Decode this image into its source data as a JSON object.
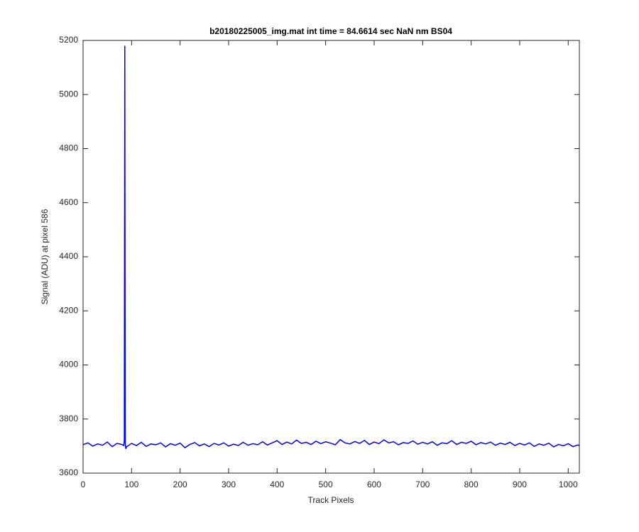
{
  "chart_data": {
    "type": "line",
    "title": "b20180225005_img.mat int time = 84.6614 sec  NaN nm BS04",
    "x_label": "Track Pixels",
    "y_label": "Signal (ADU) at pixel 586",
    "xlim": [
      0,
      1023
    ],
    "ylim": [
      3600,
      5200
    ],
    "xticks": [
      0,
      100,
      200,
      300,
      400,
      500,
      600,
      700,
      800,
      900,
      1000
    ],
    "yticks": [
      3600,
      3800,
      4000,
      4200,
      4400,
      4600,
      4800,
      5000,
      5200
    ],
    "series": [
      {
        "color": "#0000ff",
        "x": [
          0,
          10,
          20,
          30,
          40,
          50,
          60,
          70,
          80,
          84,
          85,
          86,
          87,
          88,
          90,
          100,
          110,
          120,
          130,
          140,
          150,
          160,
          170,
          180,
          190,
          200,
          210,
          220,
          230,
          240,
          250,
          260,
          270,
          280,
          290,
          300,
          310,
          320,
          330,
          340,
          350,
          360,
          370,
          380,
          390,
          400,
          410,
          420,
          430,
          440,
          450,
          460,
          470,
          480,
          490,
          500,
          510,
          520,
          530,
          540,
          550,
          560,
          570,
          580,
          590,
          600,
          610,
          620,
          630,
          640,
          650,
          660,
          670,
          680,
          690,
          700,
          710,
          720,
          730,
          740,
          750,
          760,
          770,
          780,
          790,
          800,
          810,
          820,
          830,
          840,
          850,
          860,
          870,
          880,
          890,
          900,
          910,
          920,
          930,
          940,
          950,
          960,
          970,
          980,
          990,
          1000,
          1010,
          1020,
          1023
        ],
        "values": [
          3705,
          3712,
          3700,
          3708,
          3703,
          3715,
          3698,
          3710,
          3706,
          3702,
          3720,
          5180,
          3712,
          3690,
          3698,
          3710,
          3702,
          3714,
          3699,
          3708,
          3705,
          3712,
          3697,
          3709,
          3703,
          3711,
          3694,
          3706,
          3713,
          3701,
          3708,
          3698,
          3710,
          3704,
          3712,
          3700,
          3707,
          3702,
          3714,
          3703,
          3709,
          3705,
          3716,
          3704,
          3712,
          3720,
          3706,
          3715,
          3708,
          3722,
          3710,
          3714,
          3706,
          3718,
          3709,
          3716,
          3711,
          3705,
          3724,
          3712,
          3708,
          3717,
          3710,
          3721,
          3706,
          3715,
          3709,
          3723,
          3712,
          3716,
          3705,
          3713,
          3710,
          3719,
          3707,
          3714,
          3708,
          3716,
          3703,
          3712,
          3709,
          3720,
          3706,
          3714,
          3710,
          3718,
          3705,
          3713,
          3708,
          3715,
          3703,
          3711,
          3706,
          3714,
          3702,
          3710,
          3704,
          3712,
          3699,
          3708,
          3703,
          3711,
          3697,
          3706,
          3701,
          3709,
          3698,
          3704,
          3702
        ]
      }
    ]
  }
}
